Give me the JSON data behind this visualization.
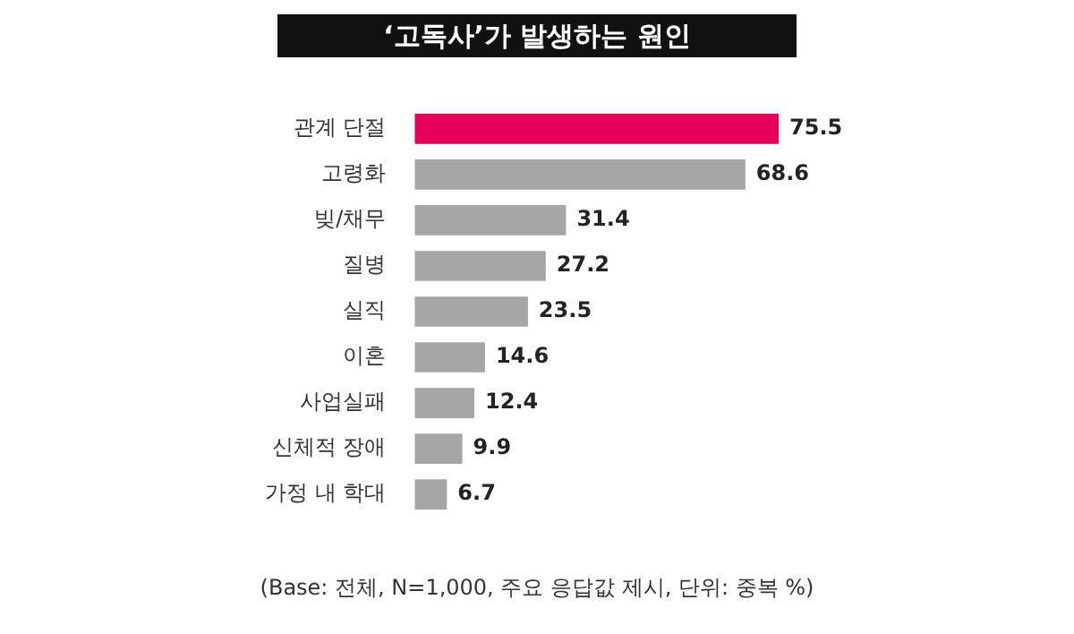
{
  "chart_data": {
    "type": "bar",
    "orientation": "horizontal",
    "title": "‘고독사’가 발생하는 원인",
    "categories": [
      "관계 단절",
      "고령화",
      "빚/채무",
      "질병",
      "실직",
      "이혼",
      "사업실패",
      "신체적 장애",
      "가정 내 학대"
    ],
    "values": [
      75.5,
      68.6,
      31.4,
      27.2,
      23.5,
      14.6,
      12.4,
      9.9,
      6.7
    ],
    "colors": [
      "#e5005a",
      "#a6a6a6",
      "#a6a6a6",
      "#a6a6a6",
      "#a6a6a6",
      "#a6a6a6",
      "#a6a6a6",
      "#a6a6a6",
      "#a6a6a6"
    ],
    "data_labels": true,
    "legend": false,
    "annotations": [
      "(Base: 전체, N=1,000, 주요 응답값 제시, 단위: 중복 %)"
    ]
  }
}
